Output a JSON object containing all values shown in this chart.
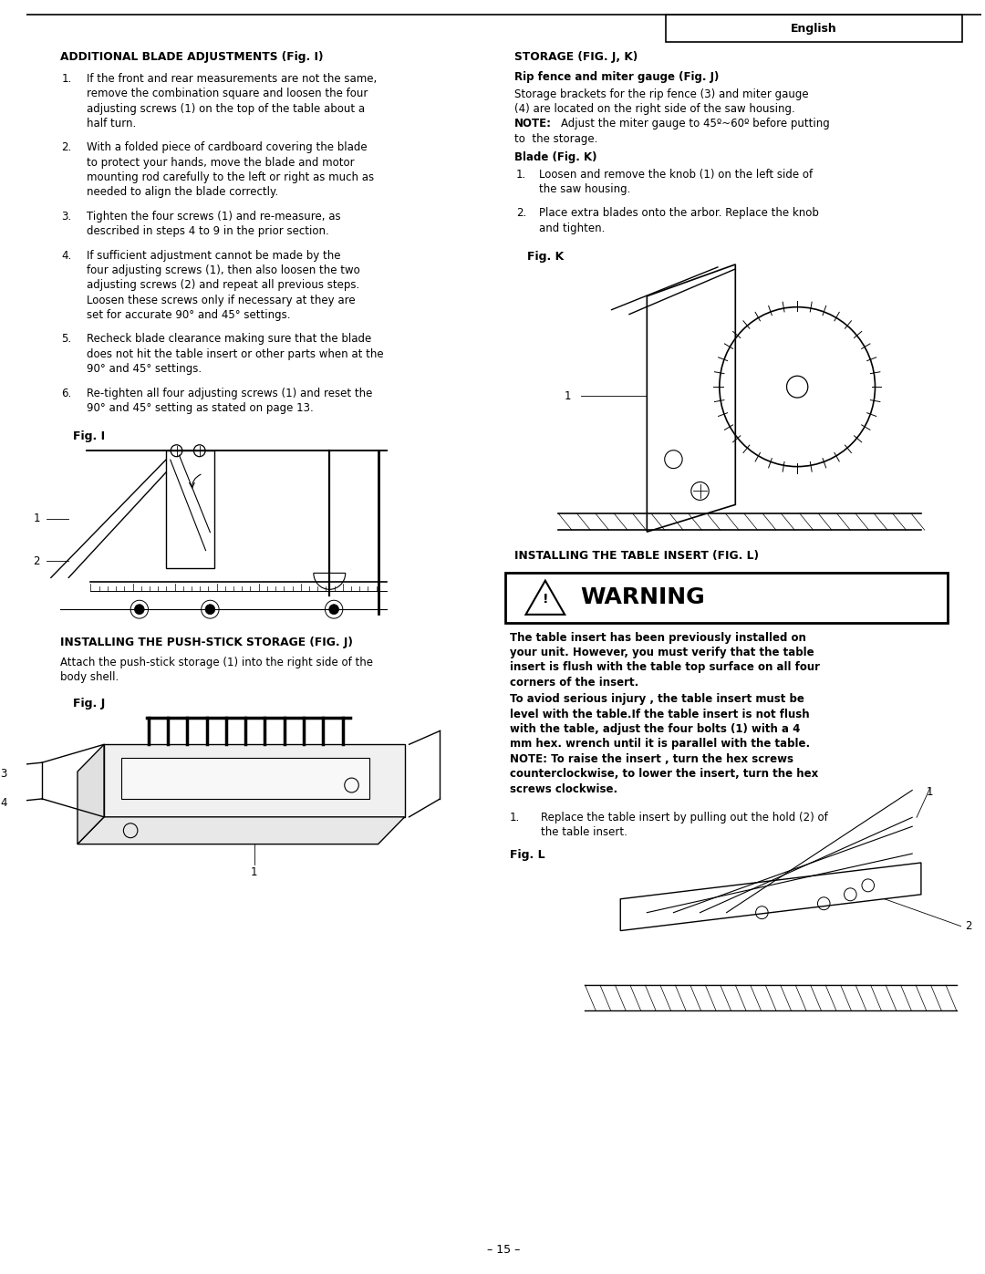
{
  "page_width": 10.8,
  "page_height": 13.97,
  "bg_color": "#ffffff",
  "text_color": "#000000",
  "page_number": "– 15 –",
  "english_label": "English",
  "additional_blade_title": "ADDITIONAL BLADE ADJUSTMENTS (Fig. I)",
  "additional_blade_items": [
    "If the front and rear measurements are not the same,\nremove the combination square and loosen the four\nadjusting screws (1) on the top of the table about a\nhalf turn.",
    "With a folded piece of cardboard covering the blade\nto protect your hands, move the blade and motor\nmounting rod carefully to the left or right as much as\nneeded to align the blade correctly.",
    "Tighten the four screws (1) and re-measure, as\ndescribed in steps 4 to 9 in the prior section.",
    "If sufficient adjustment cannot be made by the\nfour adjusting screws (1), then also loosen the two\nadjusting screws (2) and repeat all previous steps.\nLoosen these screws only if necessary at they are\nset for accurate 90° and 45° settings.",
    "Recheck blade clearance making sure that the blade\ndoes not hit the table insert or other parts when at the\n90° and 45° settings.",
    "Re-tighten all four adjusting screws (1) and reset the\n90° and 45° setting as stated on page 13."
  ],
  "push_stick_title": "INSTALLING THE PUSH-STICK STORAGE (FIG. J)",
  "push_stick_body": "Attach the push-stick storage (1) into the right side of the\nbody shell.",
  "storage_title": "STORAGE (FIG. J, K)",
  "storage_sub1": "Rip fence and miter gauge (Fig. J)",
  "storage_body1a": "Storage brackets for the rip fence (3) and miter gauge",
  "storage_body1b": "(4) are located on the right side of the saw housing.",
  "storage_note": "NOTE:",
  "storage_note_rest": "Adjust the miter gauge to 45º~60º before putting",
  "storage_note2": "to  the storage.",
  "storage_sub2": "Blade (Fig. K)",
  "blade_items": [
    "Loosen and remove the knob (1) on the left side of\nthe saw housing.",
    "Place extra blades onto the arbor. Replace the knob\nand tighten."
  ],
  "table_insert_title": "INSTALLING THE TABLE INSERT (FIG. L)",
  "warning_label": "WARNING",
  "warn_bold1": "The table insert has been previously installed on",
  "warn_bold2": "your unit. However, you must verify that the table",
  "warn_bold3": "insert is flush with the table top surface on all four",
  "warn_bold4": "corners of the insert.",
  "warn_b1": "To aviod serious injury , the table insert must be",
  "warn_b2": "level with the table.If the table insert is not flush",
  "warn_b3": "with the table, adjust the four bolts (1) with a 4",
  "warn_b4": "mm hex. wrench until it is parallel with the table.",
  "warn_b5": "NOTE: To raise the insert , turn the hex screws",
  "warn_b6": "counterclockwise, to lower the insert, turn the hex",
  "warn_b7": "screws clockwise.",
  "table_step1a": "Replace the table insert by pulling out the hold (2) of",
  "table_step1b": "the table insert."
}
